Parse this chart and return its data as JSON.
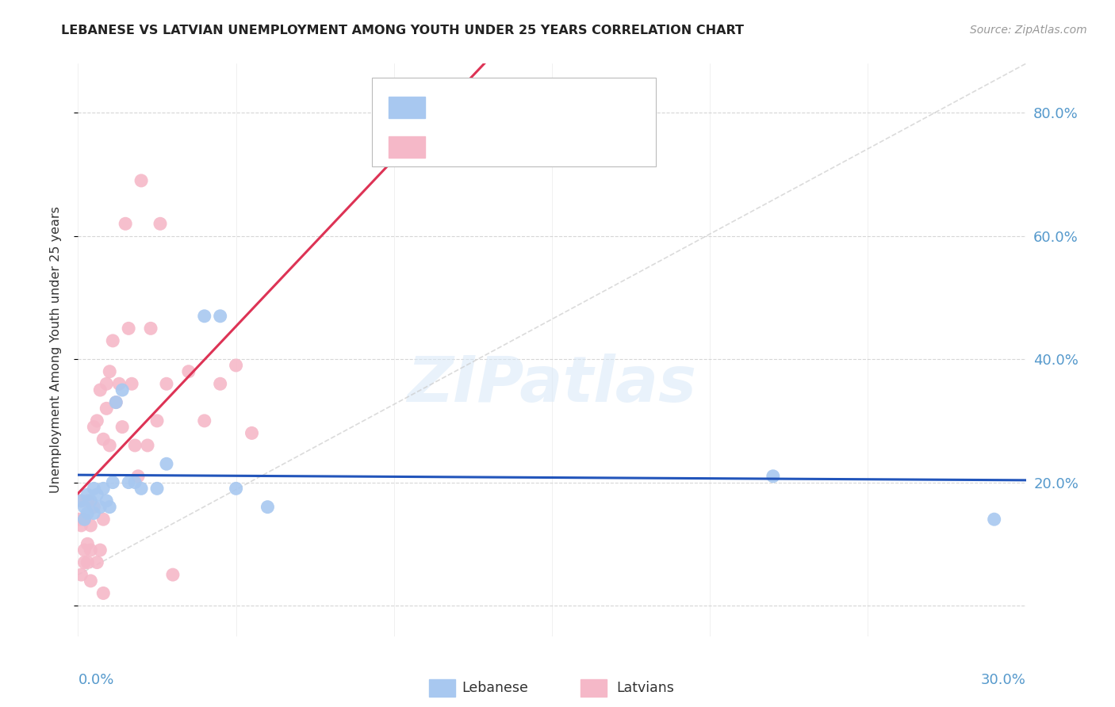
{
  "title": "LEBANESE VS LATVIAN UNEMPLOYMENT AMONG YOUTH UNDER 25 YEARS CORRELATION CHART",
  "source": "Source: ZipAtlas.com",
  "ylabel": "Unemployment Among Youth under 25 years",
  "xlim": [
    0.0,
    0.3
  ],
  "ylim": [
    -0.05,
    0.88
  ],
  "yticks": [
    0.0,
    0.2,
    0.4,
    0.6,
    0.8
  ],
  "ytick_labels": [
    "",
    "20.0%",
    "40.0%",
    "60.0%",
    "80.0%"
  ],
  "xtick_positions": [
    0.0,
    0.05,
    0.1,
    0.15,
    0.2,
    0.25,
    0.3
  ],
  "blue_color": "#A8C8F0",
  "pink_color": "#F5B8C8",
  "trend_blue_color": "#2255BB",
  "trend_pink_color": "#DD3355",
  "diag_color": "#CCCCCC",
  "tick_color": "#5599CC",
  "legend_r_color": "#2255BB",
  "legend_r2_color": "#DD3355",
  "blue_points_x": [
    0.001,
    0.002,
    0.002,
    0.003,
    0.003,
    0.004,
    0.005,
    0.005,
    0.006,
    0.007,
    0.008,
    0.009,
    0.01,
    0.011,
    0.012,
    0.014,
    0.016,
    0.018,
    0.02,
    0.025,
    0.028,
    0.04,
    0.045,
    0.05,
    0.06,
    0.22,
    0.29
  ],
  "blue_points_y": [
    0.17,
    0.16,
    0.14,
    0.18,
    0.15,
    0.17,
    0.19,
    0.15,
    0.18,
    0.16,
    0.19,
    0.17,
    0.16,
    0.2,
    0.33,
    0.35,
    0.2,
    0.2,
    0.19,
    0.19,
    0.23,
    0.47,
    0.47,
    0.19,
    0.16,
    0.21,
    0.14
  ],
  "pink_points_x": [
    0.0005,
    0.001,
    0.001,
    0.001,
    0.002,
    0.002,
    0.002,
    0.003,
    0.003,
    0.003,
    0.004,
    0.004,
    0.004,
    0.005,
    0.005,
    0.006,
    0.006,
    0.007,
    0.007,
    0.008,
    0.008,
    0.008,
    0.009,
    0.009,
    0.01,
    0.01,
    0.011,
    0.012,
    0.013,
    0.014,
    0.015,
    0.016,
    0.017,
    0.018,
    0.019,
    0.02,
    0.022,
    0.023,
    0.025,
    0.026,
    0.028,
    0.03,
    0.035,
    0.04,
    0.045,
    0.05,
    0.055
  ],
  "pink_points_y": [
    0.14,
    0.17,
    0.13,
    0.05,
    0.09,
    0.14,
    0.07,
    0.17,
    0.1,
    0.07,
    0.09,
    0.13,
    0.04,
    0.16,
    0.29,
    0.07,
    0.3,
    0.09,
    0.35,
    0.14,
    0.27,
    0.02,
    0.32,
    0.36,
    0.38,
    0.26,
    0.43,
    0.33,
    0.36,
    0.29,
    0.62,
    0.45,
    0.36,
    0.26,
    0.21,
    0.69,
    0.26,
    0.45,
    0.3,
    0.62,
    0.36,
    0.05,
    0.38,
    0.3,
    0.36,
    0.39,
    0.28
  ],
  "watermark_text": "ZIPatlas",
  "background_color": "#FFFFFF",
  "grid_color": "#CCCCCC",
  "legend_label_blue": "Lebanese",
  "legend_label_pink": "Latvians"
}
